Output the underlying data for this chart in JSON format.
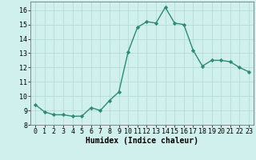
{
  "x": [
    0,
    1,
    2,
    3,
    4,
    5,
    6,
    7,
    8,
    9,
    10,
    11,
    12,
    13,
    14,
    15,
    16,
    17,
    18,
    19,
    20,
    21,
    22,
    23
  ],
  "y": [
    9.4,
    8.9,
    8.7,
    8.7,
    8.6,
    8.6,
    9.2,
    9.0,
    9.7,
    10.3,
    13.1,
    14.8,
    15.2,
    15.1,
    16.2,
    15.1,
    15.0,
    13.2,
    12.1,
    12.5,
    12.5,
    12.4,
    12.0,
    11.7
  ],
  "line_color": "#2e8b72",
  "marker": "D",
  "markersize": 2.2,
  "linewidth": 1.0,
  "background_color": "#cff0ec",
  "grid_color": "#b0d8d4",
  "xlabel": "Humidex (Indice chaleur)",
  "xlabel_fontsize": 7,
  "xlim": [
    -0.5,
    23.5
  ],
  "ylim": [
    8.0,
    16.6
  ],
  "yticks": [
    8,
    9,
    10,
    11,
    12,
    13,
    14,
    15,
    16
  ],
  "xticks": [
    0,
    1,
    2,
    3,
    4,
    5,
    6,
    7,
    8,
    9,
    10,
    11,
    12,
    13,
    14,
    15,
    16,
    17,
    18,
    19,
    20,
    21,
    22,
    23
  ],
  "tick_fontsize": 6.0
}
